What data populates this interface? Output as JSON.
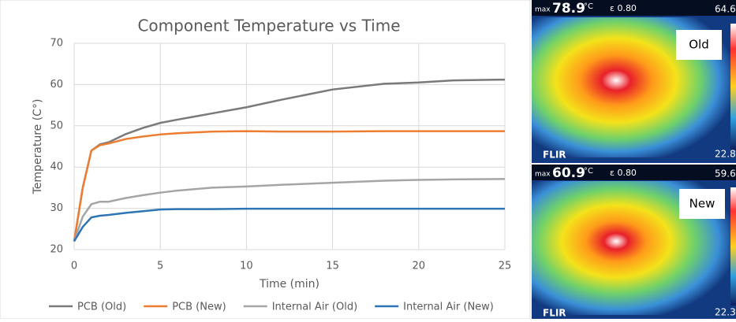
{
  "chart_data": {
    "type": "line",
    "title": "Component Temperature vs Time",
    "x_label": "Time (min)",
    "y_label": "Temperature (C°)",
    "x": [
      0,
      0.5,
      1,
      1.5,
      2,
      3,
      4,
      5,
      6,
      8,
      10,
      12,
      15,
      18,
      20,
      22,
      25
    ],
    "series": [
      {
        "name": "PCB (Old)",
        "color": "#7a7a7a",
        "values": [
          22,
          35,
          44,
          45.5,
          46,
          48,
          49.5,
          50.7,
          51.5,
          53,
          54.5,
          56.3,
          58.8,
          60.2,
          60.5,
          61,
          61.2
        ]
      },
      {
        "name": "PCB (New)",
        "color": "#ed7d31",
        "values": [
          22,
          35,
          44,
          45.3,
          45.7,
          46.8,
          47.4,
          47.9,
          48.2,
          48.6,
          48.7,
          48.6,
          48.6,
          48.7,
          48.7,
          48.7,
          48.7
        ]
      },
      {
        "name": "Internal Air (Old)",
        "color": "#a5a5a5",
        "values": [
          22,
          28,
          31,
          31.6,
          31.6,
          32.5,
          33.2,
          33.8,
          34.3,
          35,
          35.3,
          35.7,
          36.2,
          36.7,
          36.9,
          37,
          37.1
        ]
      },
      {
        "name": "Internal Air (New)",
        "color": "#2e75b6",
        "values": [
          22,
          25.5,
          27.8,
          28.2,
          28.4,
          28.9,
          29.3,
          29.7,
          29.8,
          29.8,
          29.9,
          29.9,
          29.9,
          29.9,
          29.9,
          29.9,
          29.9
        ]
      }
    ],
    "xlim": [
      0,
      25
    ],
    "xticks": [
      0,
      5,
      10,
      15,
      20,
      25
    ],
    "ylim": [
      20,
      70
    ],
    "yticks": [
      20,
      30,
      40,
      50,
      60,
      70
    ],
    "grid": true
  },
  "thermal_images": [
    {
      "label": "Old",
      "max_label": "max",
      "max_value": "78.9",
      "unit": "°C",
      "emissivity": "ε 0.80",
      "scale_top": "64.6",
      "scale_bottom": "22.8",
      "brand": "FLIR"
    },
    {
      "label": "New",
      "max_label": "max",
      "max_value": "60.9",
      "unit": "°C",
      "emissivity": "ε 0.80",
      "scale_top": "59.6",
      "scale_bottom": "22.3",
      "brand": "FLIR"
    }
  ]
}
